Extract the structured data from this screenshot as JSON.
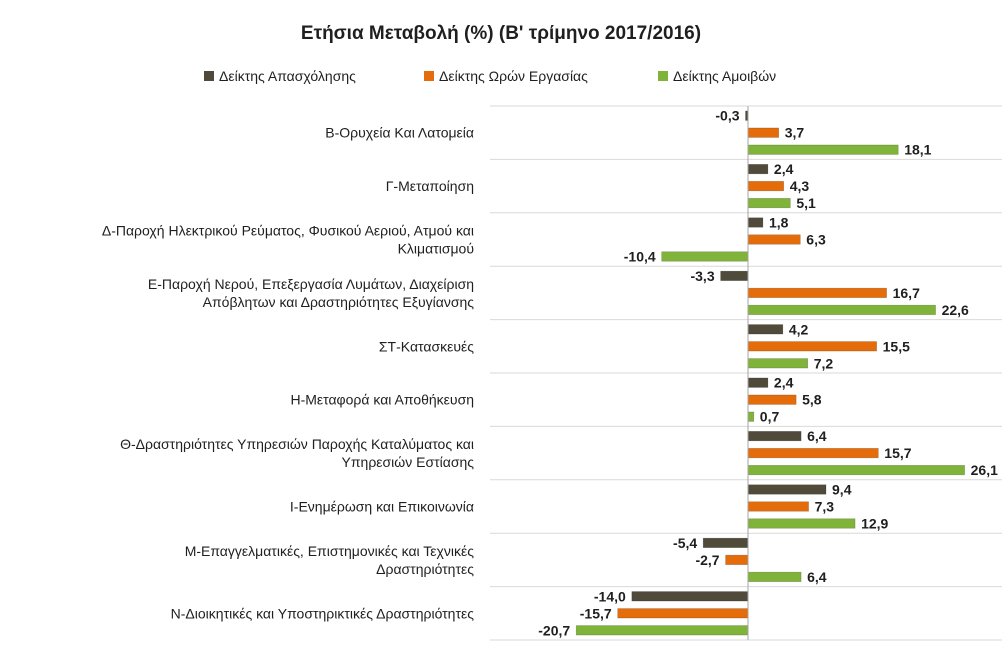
{
  "chart_data": {
    "type": "bar",
    "orientation": "horizontal",
    "title": "Ετήσια Μεταβολή (%) (Β' τρίμηνο 2017/2016)",
    "legend_position": "top",
    "grid": false,
    "xlim": [
      -22,
      27
    ],
    "categories": [
      [
        "Β-Ορυχεία Και Λατομεία"
      ],
      [
        "Γ-Μεταποίηση"
      ],
      [
        "Δ-Παροχή Ηλεκτρικού Ρεύματος, Φυσικού Αεριού, Ατμού και",
        "Κλιματισμού"
      ],
      [
        "Ε-Παροχή Νερού, Επεξεργασία Λυμάτων, Διαχείριση",
        "Απόβλητων και Δραστηριότητες Εξυγίανσης"
      ],
      [
        "ΣΤ-Κατασκευές"
      ],
      [
        "Η-Μεταφορά και Αποθήκευση"
      ],
      [
        "Θ-Δραστηριότητες Υπηρεσιών Παροχής Καταλύματος και",
        "Υπηρεσιών Εστίασης"
      ],
      [
        "Ι-Ενημέρωση και Επικοινωνία"
      ],
      [
        "Μ-Επαγγελματικές, Επιστημονικές και Τεχνικές",
        "Δραστηριότητες"
      ],
      [
        "Ν-Διοικητικές και Υποστηρικτικές Δραστηριότητες"
      ]
    ],
    "series": [
      {
        "name": "Δείκτης Απασχόλησης",
        "color": "#4f4a3a",
        "values": [
          -0.3,
          2.4,
          1.8,
          -3.3,
          4.2,
          2.4,
          6.4,
          9.4,
          -5.4,
          -14.0
        ],
        "labels": [
          "-0,3",
          "2,4",
          "1,8",
          "-3,3",
          "4,2",
          "2,4",
          "6,4",
          "9,4",
          "-5,4",
          "-14,0"
        ]
      },
      {
        "name": "Δείκτης Ωρών Εργασίας",
        "color": "#e46c0a",
        "values": [
          3.7,
          4.3,
          6.3,
          16.7,
          15.5,
          5.8,
          15.7,
          7.3,
          -2.7,
          -15.7
        ],
        "labels": [
          "3,7",
          "4,3",
          "6,3",
          "16,7",
          "15,5",
          "5,8",
          "15,7",
          "7,3",
          "-2,7",
          "-15,7"
        ]
      },
      {
        "name": "Δείκτης Αμοιβών",
        "color": "#7fb33a",
        "values": [
          18.1,
          5.1,
          -10.4,
          22.6,
          7.2,
          0.7,
          26.1,
          12.9,
          6.4,
          -20.7
        ],
        "labels": [
          "18,1",
          "5,1",
          "-10,4",
          "22,6",
          "7,2",
          "0,7",
          "26,1",
          "12,9",
          "6,4",
          "-20,7"
        ]
      }
    ]
  }
}
